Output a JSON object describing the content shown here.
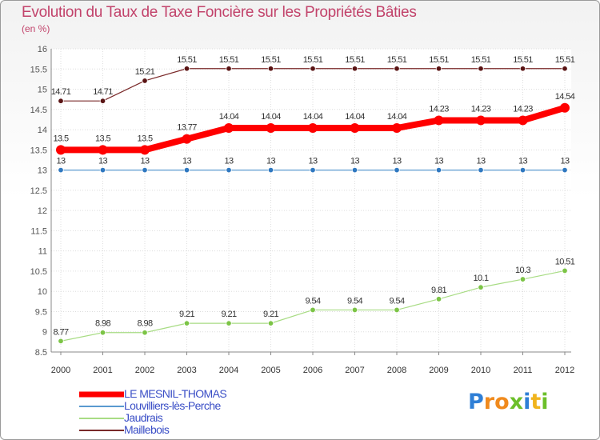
{
  "header": {
    "title": "Evolution du Taux de Taxe Foncière sur les Propriétés Bâties",
    "unit": "(en %)"
  },
  "logo": {
    "letters": [
      "P",
      "r",
      "o",
      "x",
      "i",
      "t",
      "i"
    ],
    "colors": [
      "#2f7fd6",
      "#f08a1d",
      "#f08a1d",
      "#6cbf2a",
      "#2f7fd6",
      "#f0b41d",
      "#6cbf2a"
    ]
  },
  "chart_data": {
    "type": "line",
    "title": "Evolution du Taux de Taxe Foncière sur les Propriétés Bâties",
    "xlabel": "",
    "ylabel": "(en %)",
    "ylim": [
      8.5,
      16
    ],
    "yticks": [
      "8.5",
      "9",
      "9.5",
      "10",
      "10.5",
      "11",
      "11.5",
      "12",
      "12.5",
      "13",
      "13.5",
      "14",
      "14.5",
      "15",
      "15.5",
      "16"
    ],
    "categories": [
      "2000",
      "2001",
      "2002",
      "2003",
      "2004",
      "2005",
      "2006",
      "2007",
      "2008",
      "2009",
      "2010",
      "2011",
      "2012"
    ],
    "series": [
      {
        "name": "Maillebois",
        "color": "#7a2a2a",
        "marker": "#5a1414",
        "width": 1.2,
        "values": [
          14.71,
          14.71,
          15.21,
          15.51,
          15.51,
          15.51,
          15.51,
          15.51,
          15.51,
          15.51,
          15.51,
          15.51,
          15.51
        ],
        "labels": [
          "14.71",
          "14.71",
          "15.21",
          "15.51",
          "15.51",
          "15.51",
          "15.51",
          "15.51",
          "15.51",
          "15.51",
          "15.51",
          "15.51",
          "15.51"
        ]
      },
      {
        "name": "Louvilliers-lès-Perche",
        "color": "#5a9ad0",
        "marker": "#2f78c0",
        "width": 1.2,
        "values": [
          13,
          13,
          13,
          13,
          13,
          13,
          13,
          13,
          13,
          13,
          13,
          13,
          13
        ],
        "labels": [
          "13",
          "13",
          "13",
          "13",
          "13",
          "13",
          "13",
          "13",
          "13",
          "13",
          "13",
          "13",
          "13"
        ]
      },
      {
        "name": "Jaudrais",
        "color": "#a8dc84",
        "marker": "#7cc446",
        "width": 1.2,
        "values": [
          8.77,
          8.98,
          8.98,
          9.21,
          9.21,
          9.21,
          9.54,
          9.54,
          9.54,
          9.81,
          10.1,
          10.3,
          10.51
        ],
        "labels": [
          "8.77",
          "8.98",
          "8.98",
          "9.21",
          "9.21",
          "9.21",
          "9.54",
          "9.54",
          "9.54",
          "9.81",
          "10.1",
          "10.3",
          "10.51"
        ]
      },
      {
        "name": "LE MESNIL-THOMAS",
        "color": "#ff0000",
        "marker": "#ff0000",
        "width": 8,
        "values": [
          13.5,
          13.5,
          13.5,
          13.77,
          14.04,
          14.04,
          14.04,
          14.04,
          14.04,
          14.23,
          14.23,
          14.23,
          14.54
        ],
        "labels": [
          "13.5",
          "13.5",
          "13.5",
          "13.77",
          "14.04",
          "14.04",
          "14.04",
          "14.04",
          "14.04",
          "14.23",
          "14.23",
          "14.23",
          "14.54"
        ]
      }
    ],
    "legend": [
      {
        "name": "LE MESNIL-THOMAS",
        "color": "#ff0000",
        "width": 7
      },
      {
        "name": "Louvilliers-lès-Perche",
        "color": "#5a9ad0",
        "width": 2
      },
      {
        "name": "Jaudrais",
        "color": "#a8dc84",
        "width": 2
      },
      {
        "name": "Maillebois",
        "color": "#7a2a2a",
        "width": 2
      }
    ],
    "legend_position": "bottom-left"
  }
}
